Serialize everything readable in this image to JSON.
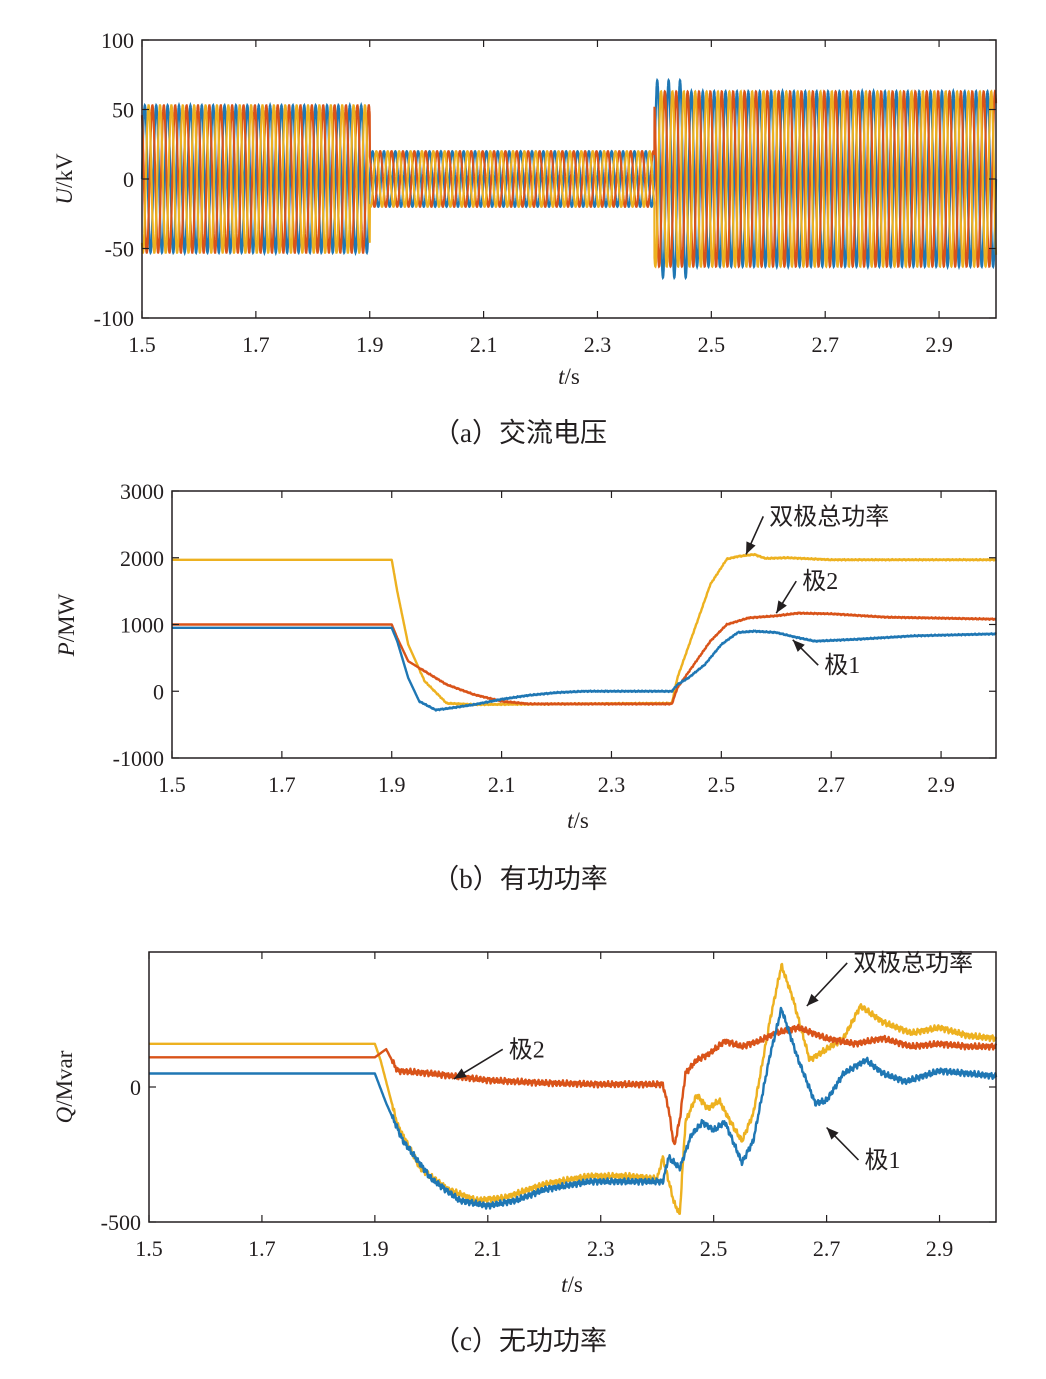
{
  "chart_data": [
    {
      "id": "a",
      "type": "line",
      "caption": "（a）交流电压",
      "ylabel_sym": "U",
      "ylabel_unit": "/kV",
      "xlabel_sym": "t",
      "xlabel_unit": "/s",
      "xlim": [
        1.5,
        3.0
      ],
      "ylim": [
        -100,
        100
      ],
      "xticks": [
        "1.5",
        "1.7",
        "1.9",
        "2.1",
        "2.3",
        "2.5",
        "2.7",
        "2.9"
      ],
      "xtick_values": [
        1.5,
        1.7,
        1.9,
        2.1,
        2.3,
        2.5,
        2.7,
        2.9
      ],
      "yticks": [
        "100",
        "50",
        "0",
        "-50",
        "-100"
      ],
      "ytick_values": [
        100,
        50,
        0,
        -50,
        -100
      ],
      "colors": [
        "#1f77b4",
        "#d95319",
        "#edb120"
      ],
      "waveform": {
        "frequency_hz": 50,
        "phases": 3,
        "segments": [
          {
            "t": [
              1.5,
              1.9
            ],
            "amplitude": 53
          },
          {
            "t": [
              1.9,
              2.4
            ],
            "amplitude": 20
          },
          {
            "t": [
              2.4,
              3.0
            ],
            "amplitude": 63
          }
        ]
      }
    },
    {
      "id": "b",
      "type": "line",
      "caption": "（b）有功功率",
      "ylabel_sym": "P",
      "ylabel_unit": "/MW",
      "xlabel_sym": "t",
      "xlabel_unit": "/s",
      "xlim": [
        1.5,
        3.0
      ],
      "ylim": [
        -1000,
        3000
      ],
      "xticks": [
        "1.5",
        "1.7",
        "1.9",
        "2.1",
        "2.3",
        "2.5",
        "2.7",
        "2.9"
      ],
      "xtick_values": [
        1.5,
        1.7,
        1.9,
        2.1,
        2.3,
        2.5,
        2.7,
        2.9
      ],
      "yticks": [
        "3000",
        "2000",
        "1000",
        "0",
        "-1000"
      ],
      "ytick_values": [
        3000,
        2000,
        1000,
        0,
        -1000
      ],
      "series": [
        {
          "name": "双极总功率",
          "color": "#edb120",
          "points": [
            [
              1.5,
              1970
            ],
            [
              1.9,
              1970
            ],
            [
              1.91,
              1500
            ],
            [
              1.93,
              700
            ],
            [
              1.96,
              150
            ],
            [
              2.0,
              -180
            ],
            [
              2.05,
              -200
            ],
            [
              2.2,
              -190
            ],
            [
              2.41,
              -180
            ],
            [
              2.42,
              200
            ],
            [
              2.45,
              900
            ],
            [
              2.48,
              1600
            ],
            [
              2.51,
              1980
            ],
            [
              2.53,
              2020
            ],
            [
              2.56,
              2050
            ],
            [
              2.58,
              1990
            ],
            [
              2.62,
              2000
            ],
            [
              2.7,
              1970
            ],
            [
              3.0,
              1970
            ]
          ]
        },
        {
          "name": "极2",
          "color": "#d95319",
          "points": [
            [
              1.5,
              1000
            ],
            [
              1.9,
              1000
            ],
            [
              1.91,
              800
            ],
            [
              1.93,
              450
            ],
            [
              1.97,
              250
            ],
            [
              2.0,
              100
            ],
            [
              2.05,
              -50
            ],
            [
              2.1,
              -150
            ],
            [
              2.15,
              -190
            ],
            [
              2.2,
              -190
            ],
            [
              2.41,
              -190
            ],
            [
              2.42,
              50
            ],
            [
              2.45,
              400
            ],
            [
              2.48,
              750
            ],
            [
              2.51,
              1000
            ],
            [
              2.55,
              1100
            ],
            [
              2.6,
              1130
            ],
            [
              2.64,
              1170
            ],
            [
              2.7,
              1160
            ],
            [
              2.8,
              1110
            ],
            [
              3.0,
              1080
            ]
          ]
        },
        {
          "name": "极1",
          "color": "#1f77b4",
          "points": [
            [
              1.5,
              950
            ],
            [
              1.9,
              950
            ],
            [
              1.91,
              750
            ],
            [
              1.93,
              200
            ],
            [
              1.95,
              -150
            ],
            [
              1.98,
              -280
            ],
            [
              2.0,
              -260
            ],
            [
              2.05,
              -200
            ],
            [
              2.1,
              -120
            ],
            [
              2.15,
              -60
            ],
            [
              2.2,
              -20
            ],
            [
              2.25,
              0
            ],
            [
              2.41,
              0
            ],
            [
              2.42,
              100
            ],
            [
              2.44,
              200
            ],
            [
              2.47,
              400
            ],
            [
              2.5,
              700
            ],
            [
              2.53,
              880
            ],
            [
              2.56,
              900
            ],
            [
              2.6,
              880
            ],
            [
              2.63,
              820
            ],
            [
              2.67,
              750
            ],
            [
              2.75,
              780
            ],
            [
              2.85,
              830
            ],
            [
              3.0,
              860
            ]
          ]
        }
      ],
      "annotations": [
        {
          "text": "双极总功率",
          "x": 2.58,
          "y": 2500,
          "arrow_to": [
            2.545,
            2050
          ]
        },
        {
          "text": "极2",
          "x": 2.64,
          "y": 1530,
          "arrow_to": [
            2.6,
            1170
          ]
        },
        {
          "text": "极1",
          "x": 2.68,
          "y": 270,
          "arrow_to": [
            2.63,
            770
          ]
        }
      ]
    },
    {
      "id": "c",
      "type": "line",
      "caption": "（c）无功功率",
      "ylabel_sym": "Q",
      "ylabel_unit": "/Mvar",
      "xlabel_sym": "t",
      "xlabel_unit": "/s",
      "xlim": [
        1.5,
        3.0
      ],
      "ylim": [
        -500,
        500
      ],
      "xticks": [
        "1.5",
        "1.7",
        "1.9",
        "2.1",
        "2.3",
        "2.5",
        "2.7",
        "2.9"
      ],
      "xtick_values": [
        1.5,
        1.7,
        1.9,
        2.1,
        2.3,
        2.5,
        2.7,
        2.9
      ],
      "yticks": [
        "0",
        "-500"
      ],
      "ytick_values": [
        0,
        -500
      ],
      "series": [
        {
          "name": "双极总功率",
          "color": "#edb120",
          "points": [
            [
              1.5,
              160
            ],
            [
              1.9,
              160
            ],
            [
              1.91,
              100
            ],
            [
              1.94,
              -140
            ],
            [
              1.98,
              -300
            ],
            [
              2.03,
              -380
            ],
            [
              2.08,
              -420
            ],
            [
              2.13,
              -410
            ],
            [
              2.2,
              -360
            ],
            [
              2.28,
              -330
            ],
            [
              2.35,
              -330
            ],
            [
              2.4,
              -340
            ],
            [
              2.41,
              -260
            ],
            [
              2.43,
              -430
            ],
            [
              2.44,
              -470
            ],
            [
              2.45,
              -130
            ],
            [
              2.47,
              -30
            ],
            [
              2.49,
              -80
            ],
            [
              2.51,
              -50
            ],
            [
              2.53,
              -130
            ],
            [
              2.55,
              -200
            ],
            [
              2.57,
              -100
            ],
            [
              2.6,
              250
            ],
            [
              2.62,
              450
            ],
            [
              2.64,
              330
            ],
            [
              2.67,
              100
            ],
            [
              2.7,
              140
            ],
            [
              2.73,
              180
            ],
            [
              2.76,
              300
            ],
            [
              2.8,
              240
            ],
            [
              2.85,
              200
            ],
            [
              2.9,
              220
            ],
            [
              2.95,
              190
            ],
            [
              3.0,
              180
            ]
          ]
        },
        {
          "name": "极2",
          "color": "#d95319",
          "points": [
            [
              1.5,
              110
            ],
            [
              1.9,
              110
            ],
            [
              1.92,
              140
            ],
            [
              1.94,
              60
            ],
            [
              2.0,
              50
            ],
            [
              2.1,
              25
            ],
            [
              2.2,
              15
            ],
            [
              2.3,
              10
            ],
            [
              2.41,
              10
            ],
            [
              2.42,
              -80
            ],
            [
              2.43,
              -220
            ],
            [
              2.44,
              -120
            ],
            [
              2.45,
              50
            ],
            [
              2.47,
              100
            ],
            [
              2.49,
              120
            ],
            [
              2.52,
              170
            ],
            [
              2.55,
              150
            ],
            [
              2.58,
              170
            ],
            [
              2.61,
              200
            ],
            [
              2.65,
              220
            ],
            [
              2.7,
              180
            ],
            [
              2.75,
              160
            ],
            [
              2.8,
              180
            ],
            [
              2.85,
              150
            ],
            [
              2.9,
              160
            ],
            [
              2.95,
              150
            ],
            [
              3.0,
              150
            ]
          ]
        },
        {
          "name": "极1",
          "color": "#1f77b4",
          "points": [
            [
              1.5,
              50
            ],
            [
              1.9,
              50
            ],
            [
              1.92,
              -60
            ],
            [
              1.95,
              -200
            ],
            [
              2.0,
              -340
            ],
            [
              2.05,
              -420
            ],
            [
              2.1,
              -440
            ],
            [
              2.15,
              -420
            ],
            [
              2.2,
              -380
            ],
            [
              2.28,
              -350
            ],
            [
              2.35,
              -350
            ],
            [
              2.41,
              -350
            ],
            [
              2.42,
              -260
            ],
            [
              2.44,
              -300
            ],
            [
              2.46,
              -180
            ],
            [
              2.48,
              -130
            ],
            [
              2.5,
              -160
            ],
            [
              2.52,
              -130
            ],
            [
              2.55,
              -280
            ],
            [
              2.57,
              -200
            ],
            [
              2.6,
              120
            ],
            [
              2.62,
              290
            ],
            [
              2.65,
              100
            ],
            [
              2.68,
              -60
            ],
            [
              2.7,
              -50
            ],
            [
              2.73,
              50
            ],
            [
              2.77,
              100
            ],
            [
              2.8,
              50
            ],
            [
              2.84,
              20
            ],
            [
              2.9,
              60
            ],
            [
              2.95,
              50
            ],
            [
              3.0,
              40
            ]
          ]
        }
      ],
      "annotations": [
        {
          "text": "双极总功率",
          "x": 2.74,
          "y": 430,
          "arrow_to": [
            2.665,
            300
          ]
        },
        {
          "text": "极2",
          "x": 2.13,
          "y": 110,
          "arrow_to": [
            2.04,
            30
          ]
        },
        {
          "text": "极1",
          "x": 2.76,
          "y": -300,
          "arrow_to": [
            2.7,
            -150
          ]
        }
      ]
    }
  ]
}
